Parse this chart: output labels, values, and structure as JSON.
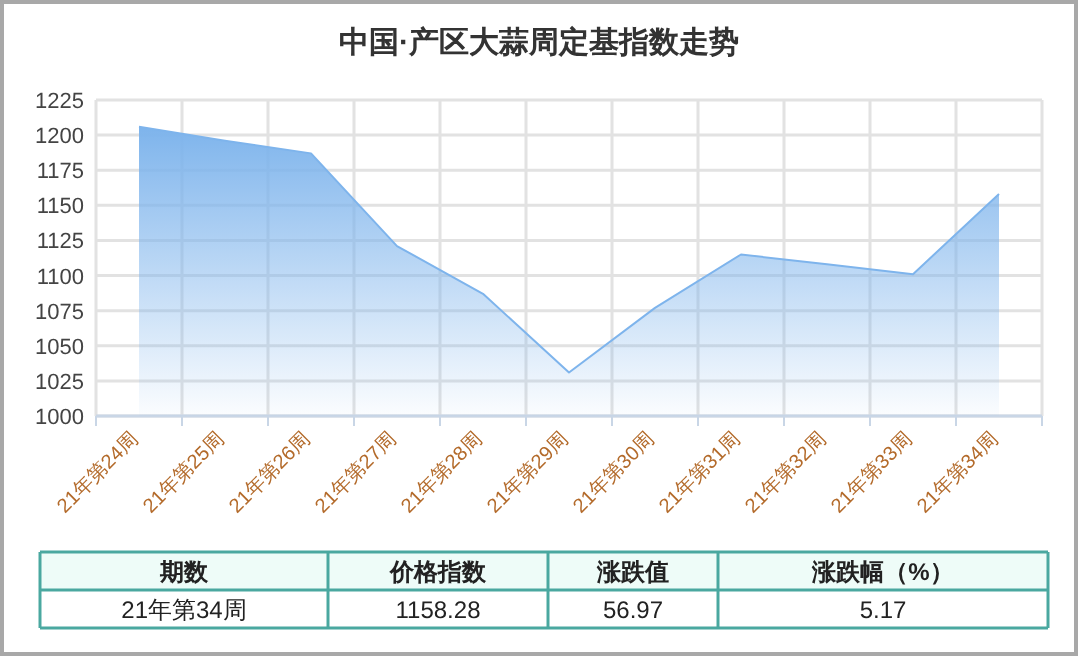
{
  "chart_data": {
    "type": "area",
    "title": "中国·产区大蒜周定基指数走势",
    "categories": [
      "21年第24周",
      "21年第25周",
      "21年第26周",
      "21年第27周",
      "21年第28周",
      "21年第29周",
      "21年第30周",
      "21年第31周",
      "21年第32周",
      "21年第33周",
      "21年第34周"
    ],
    "series": [
      {
        "color": "#7eb4ec",
        "values": [
          1206,
          1196,
          1187,
          1121,
          1087,
          1031,
          1077,
          1115,
          1108,
          1101,
          1158
        ]
      }
    ],
    "ylim": [
      1000,
      1225
    ],
    "yticks": [
      1000,
      1025,
      1050,
      1075,
      1100,
      1125,
      1150,
      1175,
      1200,
      1225
    ],
    "grid": true,
    "annotations": [
      "期数",
      "价格指数",
      "涨跌值",
      "涨跌幅（%）",
      "21年第34周",
      "1158.28",
      "56.97",
      "5.17"
    ]
  }
}
